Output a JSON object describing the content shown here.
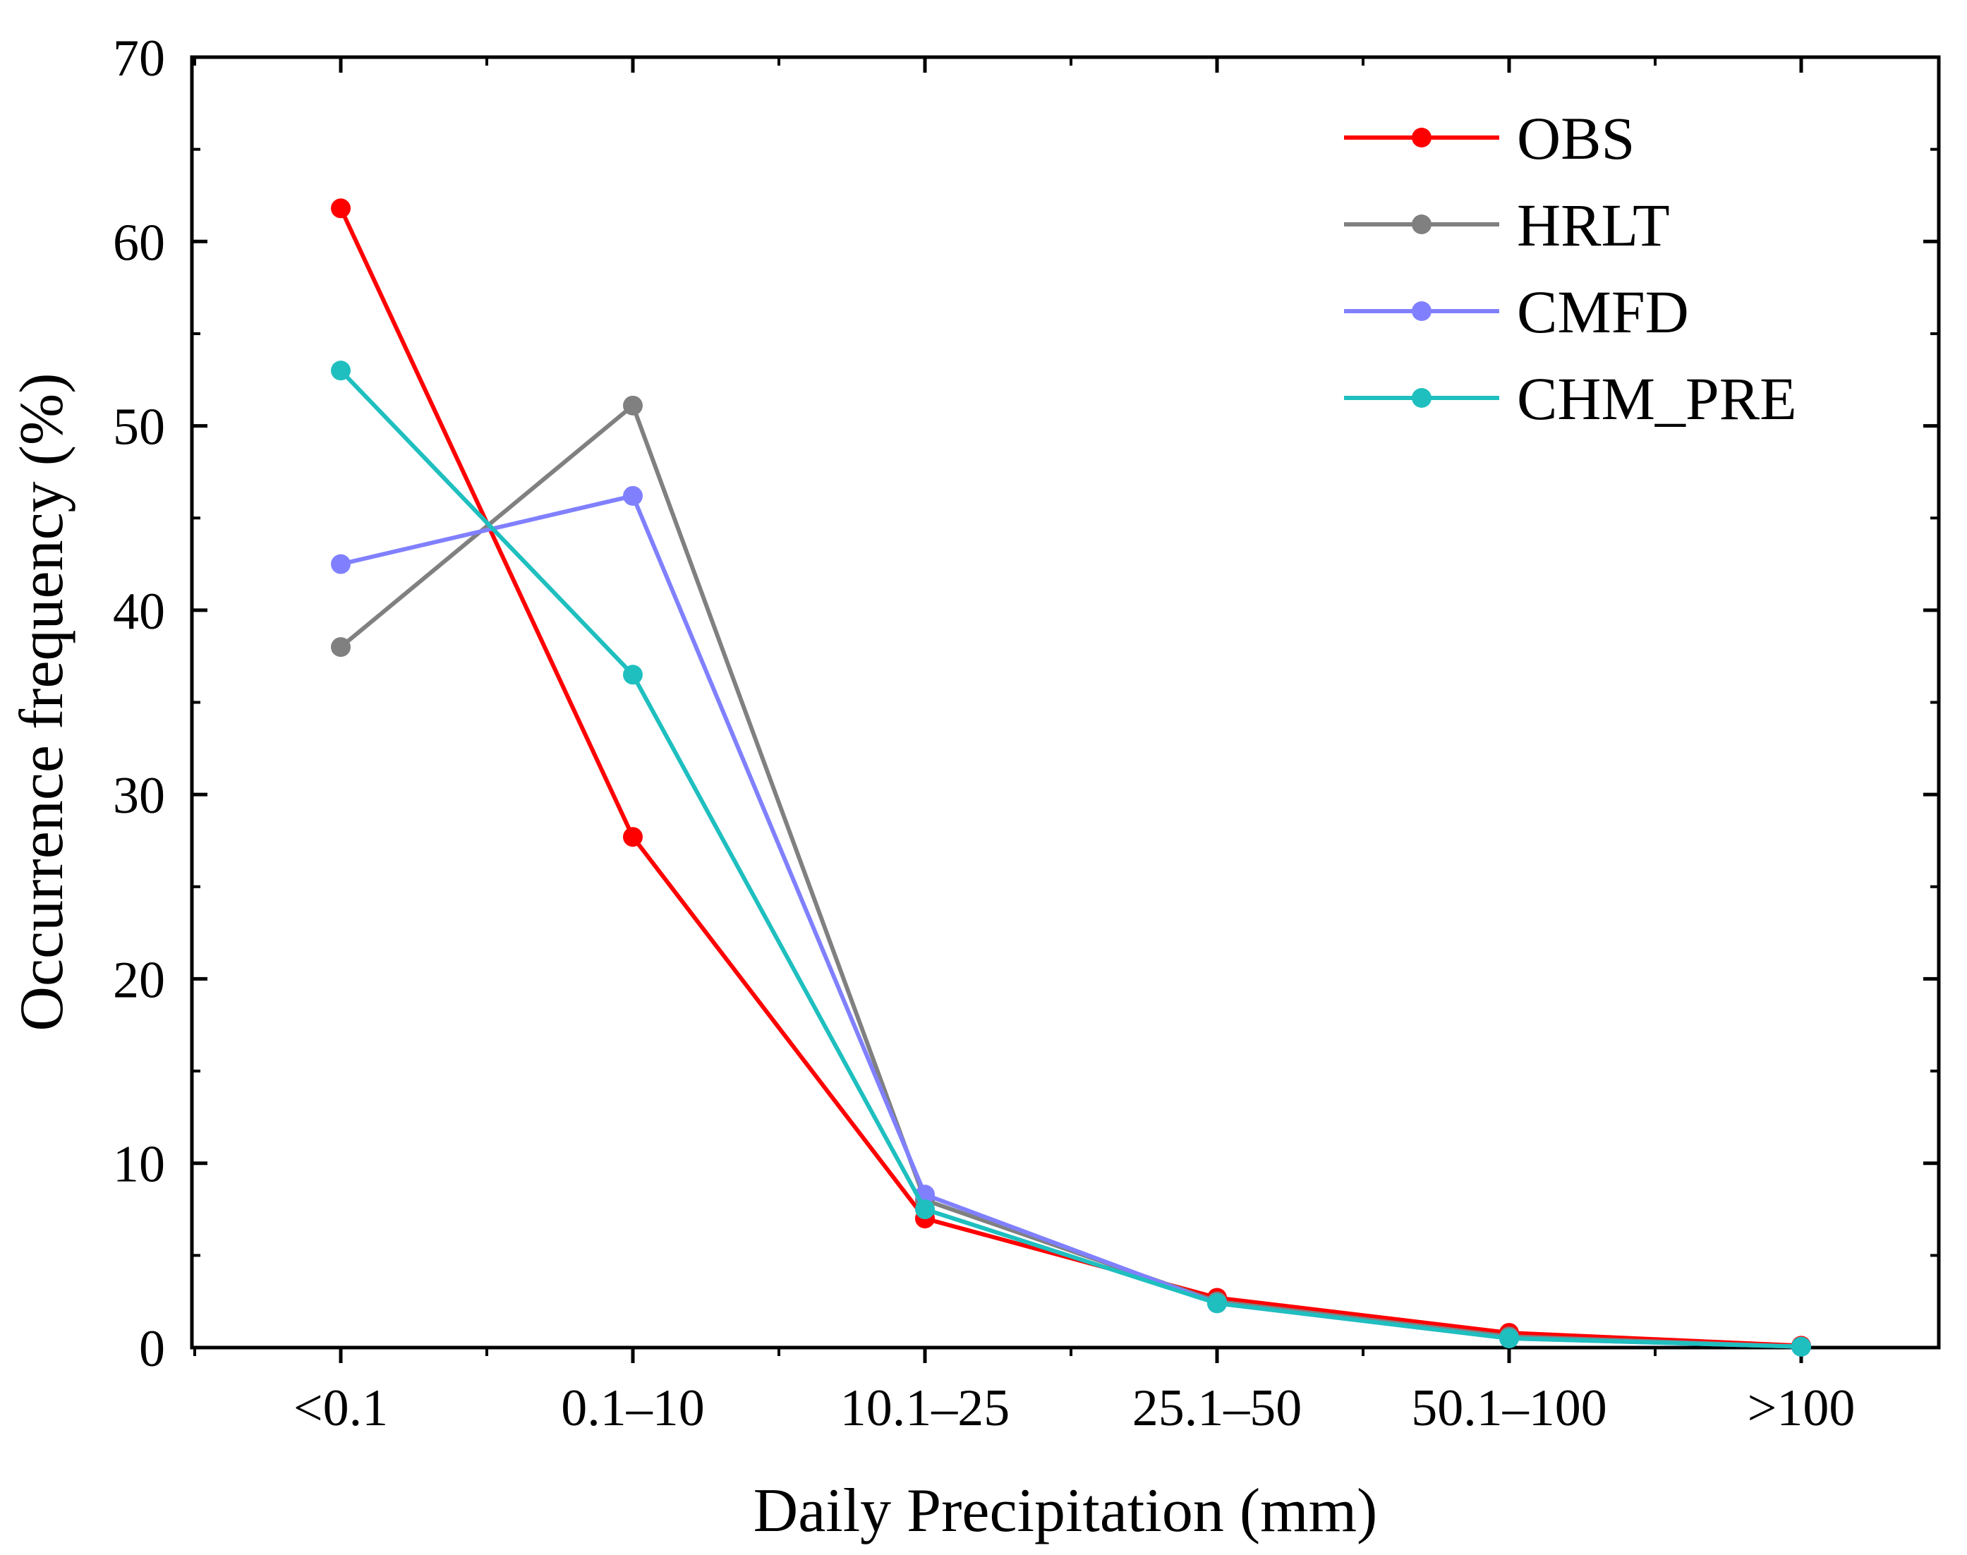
{
  "chart_data": {
    "type": "line",
    "title": "",
    "xlabel": "Daily Precipitation (mm)",
    "ylabel": "Occurrence frequency (%)",
    "categories": [
      "<0.1",
      "0.1–10",
      "10.1–25",
      "25.1–50",
      "50.1–100",
      ">100"
    ],
    "ylim": [
      0,
      70
    ],
    "yticks": [
      0,
      10,
      20,
      30,
      40,
      50,
      60,
      70
    ],
    "ytick_labels": [
      "0",
      "10",
      "20",
      "30",
      "40",
      "50",
      "60",
      "70"
    ],
    "legend_position": "top-right",
    "grid": false,
    "series": [
      {
        "name": "OBS",
        "color": "#ff0000",
        "values": [
          61.8,
          27.7,
          7.0,
          2.7,
          0.8,
          0.1
        ]
      },
      {
        "name": "HRLT",
        "color": "#808080",
        "values": [
          38.0,
          51.1,
          8.0,
          2.5,
          0.6,
          0.05
        ]
      },
      {
        "name": "CMFD",
        "color": "#8080ff",
        "values": [
          42.5,
          46.2,
          8.3,
          2.4,
          0.5,
          0.05
        ]
      },
      {
        "name": "CHM_PRE",
        "color": "#1fbfbf",
        "values": [
          53.0,
          36.5,
          7.5,
          2.4,
          0.5,
          0.05
        ]
      }
    ]
  }
}
